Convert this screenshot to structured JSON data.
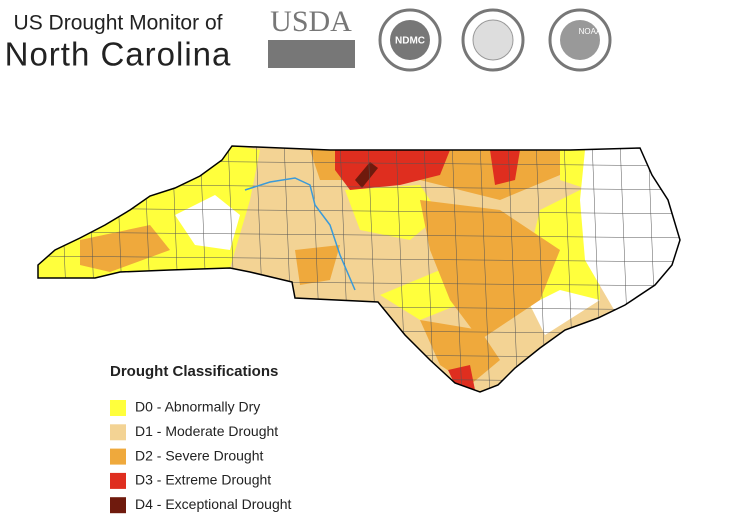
{
  "header": {
    "title_line1": "US Drought Monitor of",
    "title_line2": "North Carolina"
  },
  "logos": [
    "USDA",
    "NDMC",
    "NOAA"
  ],
  "legend": {
    "title": "Drought Classifications",
    "items": [
      {
        "label": "D0 - Abnormally Dry",
        "color": "#ffff3c"
      },
      {
        "label": "D1 - Moderate Drought",
        "color": "#f3d394"
      },
      {
        "label": "D2 - Severe Drought",
        "color": "#efa93c"
      },
      {
        "label": "D3 - Extreme Drought",
        "color": "#df2e1f"
      },
      {
        "label": "D4 - Exceptional Drought",
        "color": "#6f1a0d"
      }
    ]
  }
}
